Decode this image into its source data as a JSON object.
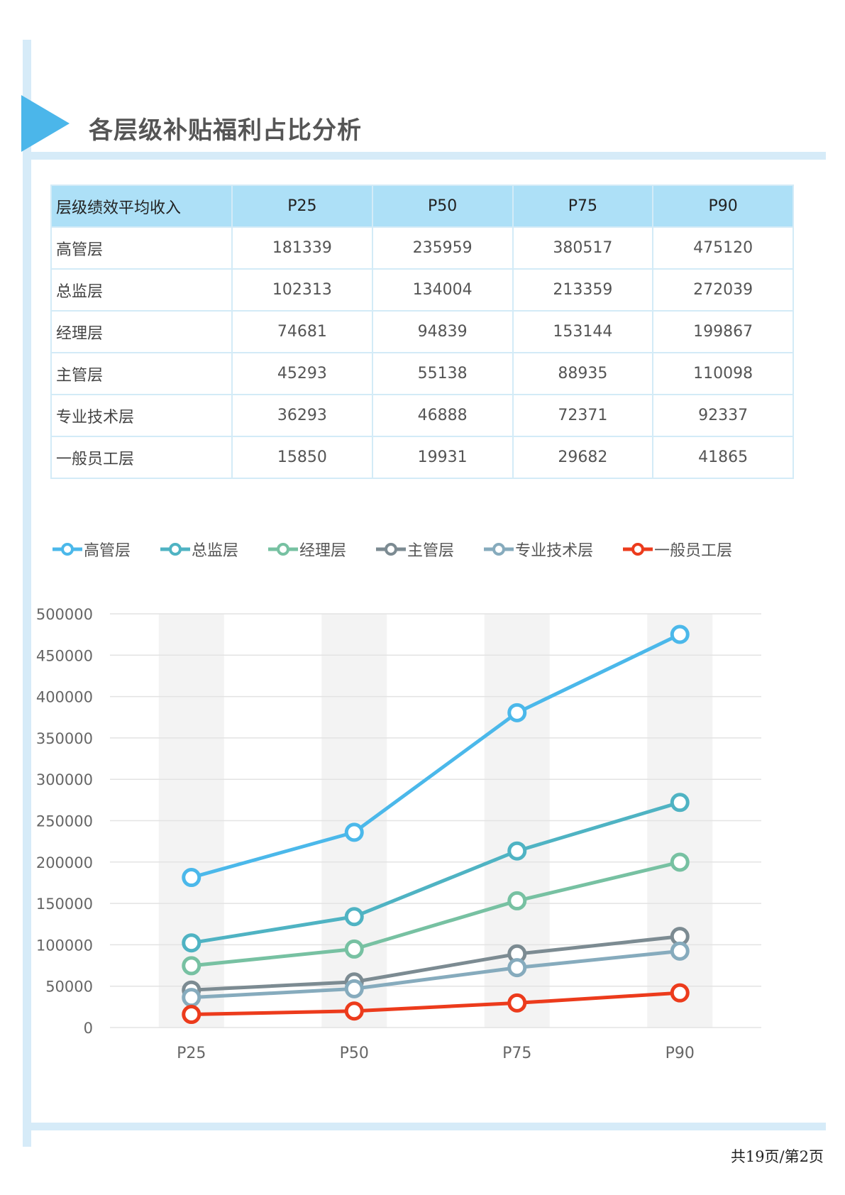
{
  "page": {
    "title": "各层级补贴福利占比分析",
    "page_number": "共19页/第2页"
  },
  "table": {
    "headers": [
      "层级绩效平均收入",
      "P25",
      "P50",
      "P75",
      "P90"
    ],
    "rows": [
      [
        "高管层",
        "181339",
        "235959",
        "380517",
        "475120"
      ],
      [
        "总监层",
        "102313",
        "134004",
        "213359",
        "272039"
      ],
      [
        "经理层",
        "74681",
        "94839",
        "153144",
        "199867"
      ],
      [
        "主管层",
        "45293",
        "55138",
        "88935",
        "110098"
      ],
      [
        "专业技术层",
        "36293",
        "46888",
        "72371",
        "92337"
      ],
      [
        "一般员工层",
        "15850",
        "19931",
        "29682",
        "41865"
      ]
    ]
  },
  "chart_data": {
    "type": "line",
    "categories": [
      "P25",
      "P50",
      "P75",
      "P90"
    ],
    "series": [
      {
        "name": "高管层",
        "color": "#4bb8ea",
        "values": [
          181339,
          235959,
          380517,
          475120
        ]
      },
      {
        "name": "总监层",
        "color": "#4fb3c3",
        "values": [
          102313,
          134004,
          213359,
          272039
        ]
      },
      {
        "name": "经理层",
        "color": "#77c1a2",
        "values": [
          74681,
          94839,
          153144,
          199867
        ]
      },
      {
        "name": "主管层",
        "color": "#7c8b92",
        "values": [
          45293,
          55138,
          88935,
          110098
        ]
      },
      {
        "name": "专业技术层",
        "color": "#86abbd",
        "values": [
          36293,
          46888,
          72371,
          92337
        ]
      },
      {
        "name": "一般员工层",
        "color": "#ec3b1c",
        "values": [
          15850,
          19931,
          29682,
          41865
        ]
      }
    ],
    "ylim": [
      0,
      500000
    ],
    "yticks": [
      "0",
      "50000",
      "100000",
      "150000",
      "200000",
      "250000",
      "300000",
      "350000",
      "400000",
      "450000",
      "500000"
    ],
    "grid": true,
    "legend": "top-left"
  }
}
